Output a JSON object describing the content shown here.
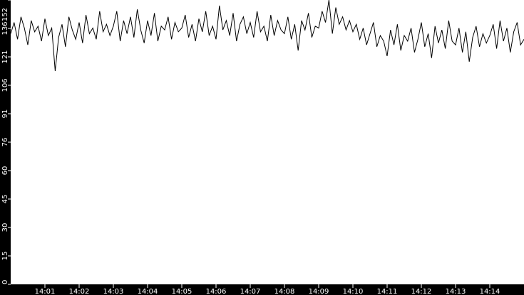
{
  "chart_data": {
    "type": "line",
    "title": "",
    "xlabel": "",
    "ylabel": "",
    "x_range": [
      "14:00",
      "14:15"
    ],
    "ylim": [
      0,
      152
    ],
    "y_ticks": [
      "0",
      "15",
      "30",
      "45",
      "60",
      "76",
      "91",
      "106",
      "121",
      "136",
      "152"
    ],
    "x_ticks": [
      "14:01",
      "14:02",
      "14:03",
      "14:04",
      "14:05",
      "14:06",
      "14:07",
      "14:08",
      "14:09",
      "14:10",
      "14:11",
      "14:12",
      "14:13",
      "14:14"
    ],
    "grid": false,
    "colors": {
      "background": "#000000",
      "plot_area": "#ffffff",
      "line": "#000000",
      "axis_text": "#ffffff"
    },
    "values": [
      134,
      140,
      131,
      143,
      137,
      128,
      141,
      135,
      138,
      130,
      142,
      133,
      137,
      114,
      132,
      139,
      127,
      143,
      136,
      131,
      140,
      129,
      144,
      134,
      137,
      131,
      146,
      135,
      139,
      133,
      138,
      146,
      130,
      141,
      134,
      143,
      132,
      147,
      136,
      129,
      141,
      133,
      145,
      130,
      138,
      136,
      143,
      131,
      140,
      135,
      137,
      144,
      132,
      139,
      130,
      142,
      135,
      146,
      133,
      138,
      131,
      149,
      136,
      141,
      133,
      145,
      130,
      139,
      143,
      134,
      140,
      132,
      146,
      135,
      138,
      130,
      144,
      133,
      141,
      136,
      134,
      143,
      131,
      139,
      125,
      141,
      136,
      145,
      132,
      138,
      137,
      146,
      140,
      152,
      134,
      148,
      139,
      143,
      136,
      141,
      135,
      139,
      131,
      137,
      128,
      134,
      140,
      127,
      133,
      130,
      122,
      136,
      128,
      139,
      125,
      133,
      130,
      137,
      124,
      131,
      140,
      127,
      134,
      121,
      138,
      129,
      136,
      126,
      141,
      130,
      128,
      137,
      124,
      135,
      119,
      132,
      138,
      127,
      134,
      129,
      133,
      139,
      126,
      141,
      130,
      137,
      124,
      135,
      140,
      128,
      131
    ]
  }
}
